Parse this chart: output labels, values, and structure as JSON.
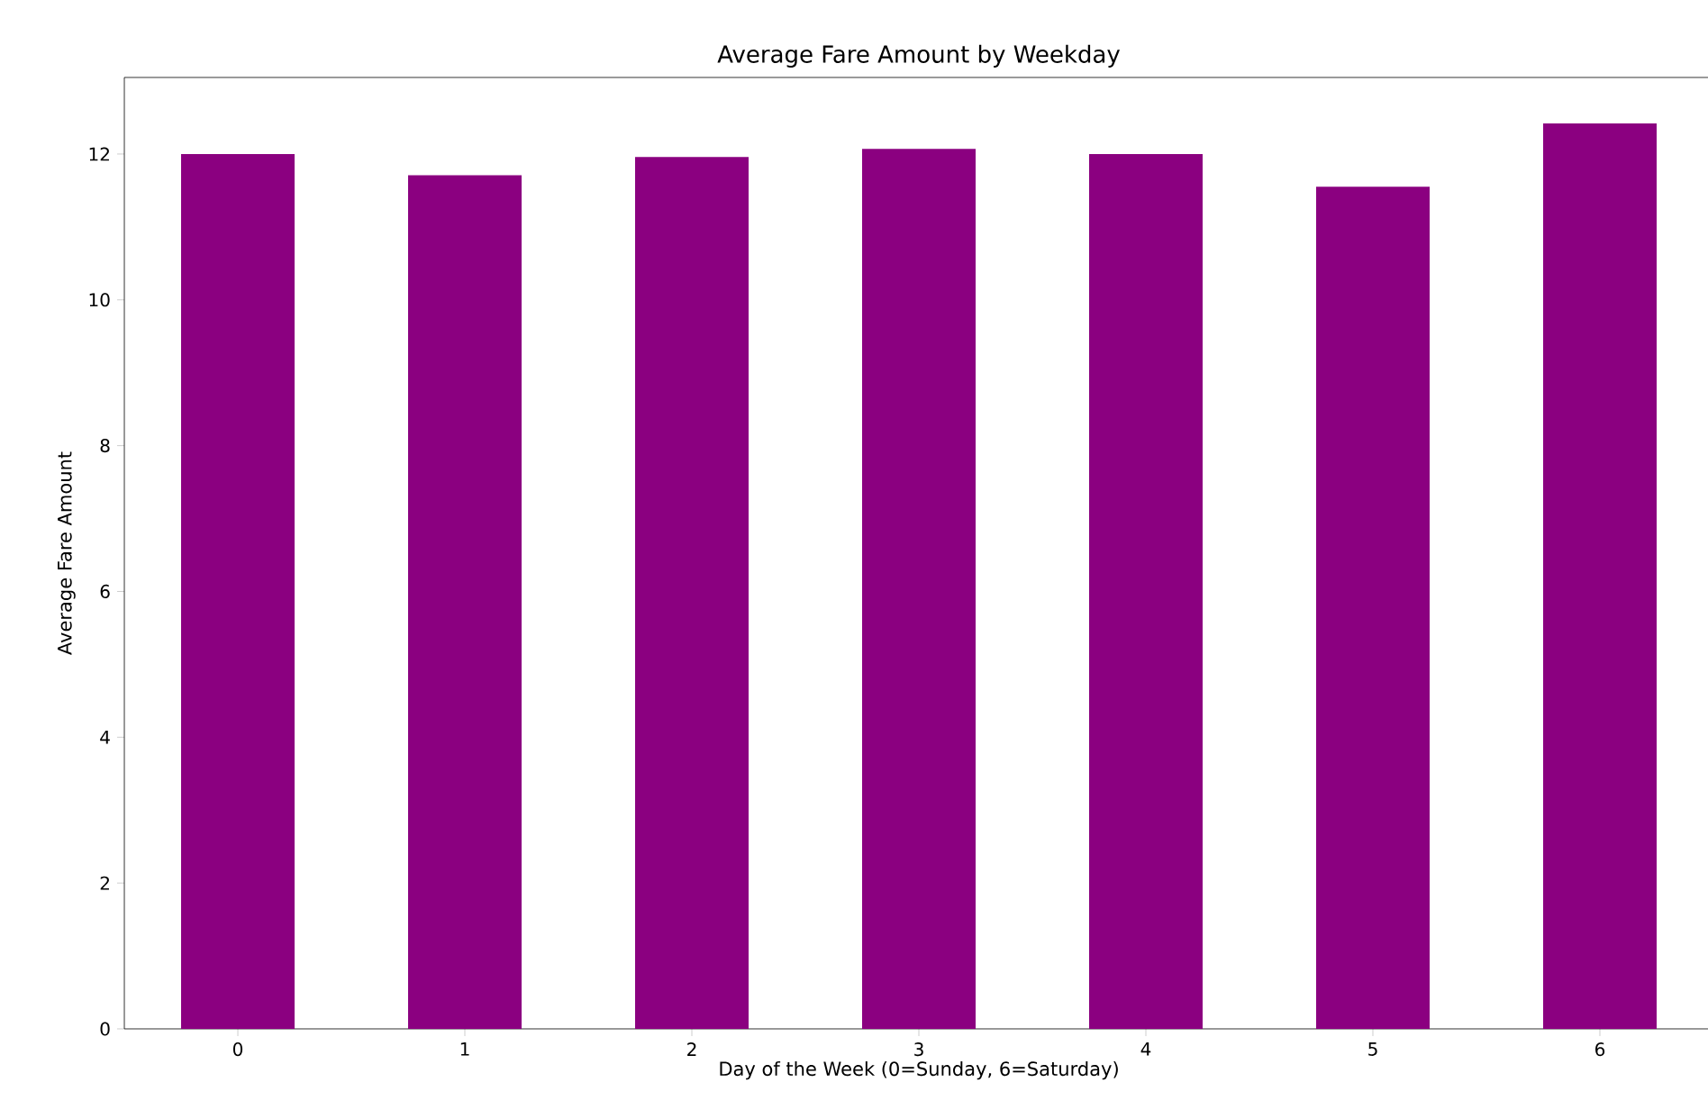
{
  "chart_data": {
    "type": "bar",
    "title": "Average Fare Amount by Weekday",
    "xlabel": "Day of the Week (0=Sunday, 6=Saturday)",
    "ylabel": "Average Fare Amount",
    "categories": [
      "0",
      "1",
      "2",
      "3",
      "4",
      "5",
      "6"
    ],
    "values": [
      12.0,
      11.71,
      11.96,
      12.07,
      12.0,
      11.55,
      12.42
    ],
    "color": "#8b0080",
    "ylim": [
      0,
      13.05
    ],
    "yticks": [
      0,
      2,
      4,
      6,
      8,
      10,
      12
    ],
    "grid": false
  }
}
